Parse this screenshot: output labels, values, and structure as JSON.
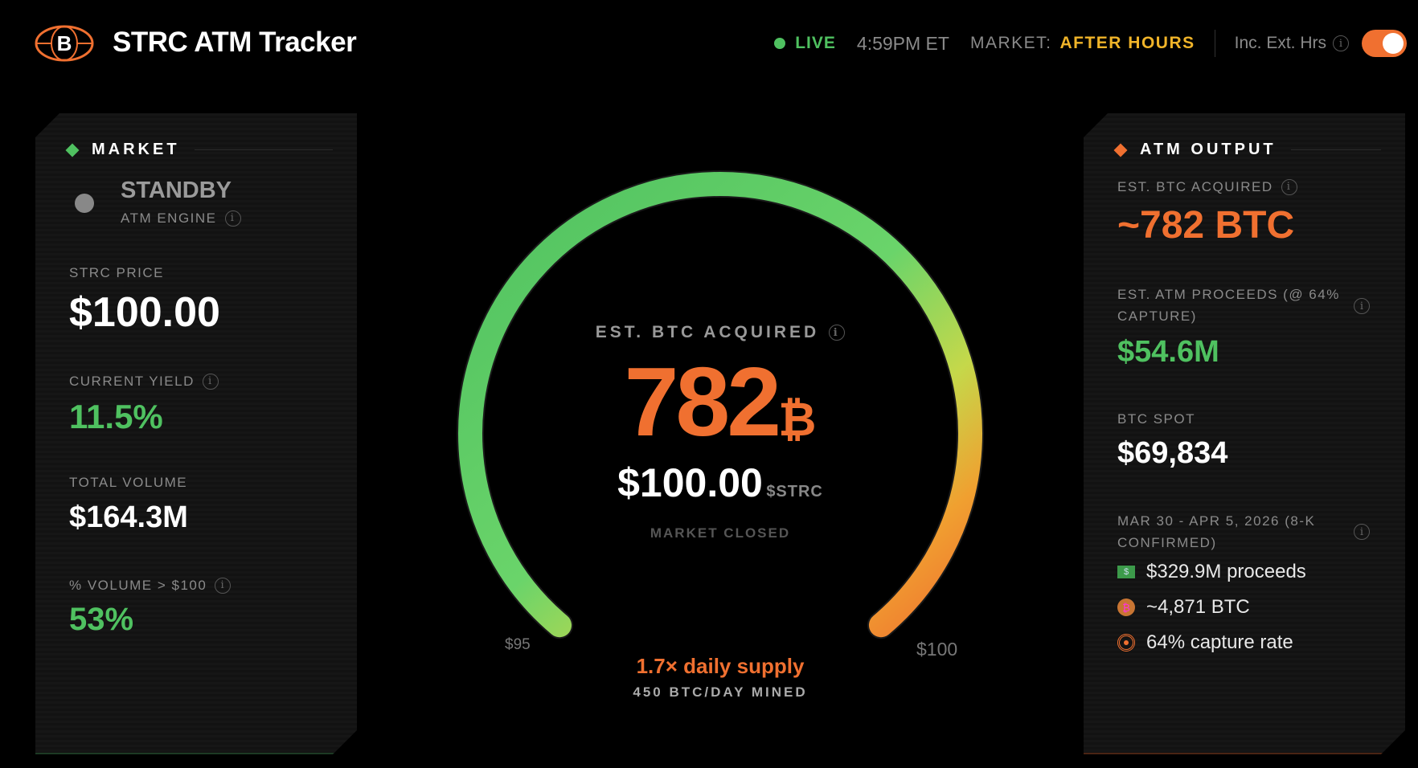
{
  "header": {
    "title": "STRC ATM Tracker",
    "live": "LIVE",
    "time": "4:59PM ET",
    "market_label": "MARKET:",
    "market_status": "AFTER HOURS",
    "ext_hours_label": "Inc. Ext. Hrs",
    "ext_hours_on": true
  },
  "colors": {
    "green": "#4fc160",
    "orange": "#f07030",
    "yellow": "#f0b429"
  },
  "market": {
    "section": "MARKET",
    "engine_state": "STANDBY",
    "engine_label": "ATM ENGINE",
    "price_label": "STRC PRICE",
    "price": "$100.00",
    "yield_label": "CURRENT YIELD",
    "yield": "11.5%",
    "volume_label": "TOTAL VOLUME",
    "volume": "$164.3M",
    "pct_label": "% VOLUME > $100",
    "pct": "53%"
  },
  "gauge": {
    "label": "EST. BTC ACQUIRED",
    "value": "782",
    "unit": "₿",
    "price": "$100.00",
    "ticker": "$STRC",
    "status": "MARKET CLOSED",
    "min_label": "$95",
    "max_label": "$100",
    "min": 95,
    "max": 100,
    "current": 100,
    "supply": "1.7× daily supply",
    "mined": "450 BTC/DAY MINED"
  },
  "output": {
    "section": "ATM OUTPUT",
    "btc_label": "EST. BTC ACQUIRED",
    "btc": "~782 BTC",
    "proceeds_label": "EST. ATM PROCEEDS (@ 64% CAPTURE)",
    "proceeds": "$54.6M",
    "spot_label": "BTC SPOT",
    "spot": "$69,834",
    "period_label": "MAR 30 - APR 5, 2026 (8-K CONFIRMED)",
    "items": [
      "$329.9M proceeds",
      "~4,871 BTC",
      "64% capture rate"
    ]
  }
}
